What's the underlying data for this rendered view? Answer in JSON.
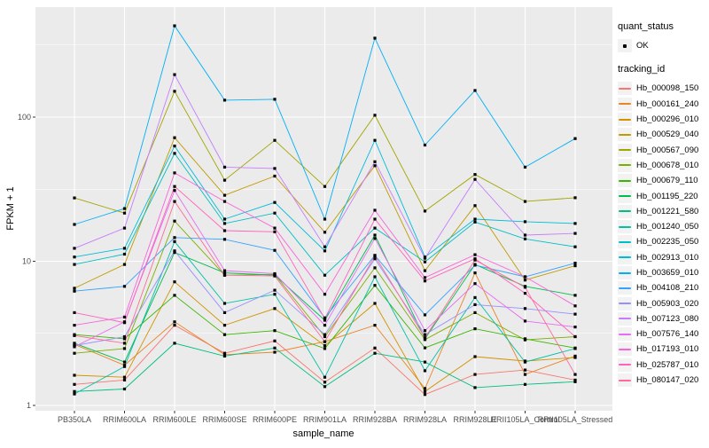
{
  "style_colors": {
    "panel_bg": "#EBEBEB",
    "grid": "#FFFFFF",
    "tick_label": "#4D4D4D",
    "axis_title": "#000000",
    "point": "#000000",
    "legend_key_bg": "#F2F2F2"
  },
  "chart_data": {
    "type": "line",
    "title": "",
    "xlabel": "sample_name",
    "ylabel": "FPKM + 1",
    "yscale": "log10",
    "yticks": [
      "1",
      "10",
      "100"
    ],
    "ytick_values": [
      1,
      10,
      100
    ],
    "yminor_values": [
      3.162,
      31.62,
      316.2
    ],
    "ylim": [
      0.93,
      600
    ],
    "grid": true,
    "legend_position": "right",
    "categories": [
      "PB350LA",
      "RRIM600LA",
      "RRIM600LE",
      "RRIM600SE",
      "RRIM600PE",
      "RRIM901LA",
      "RRIM928BA",
      "RRIM928LA",
      "RRIM928LE",
      "RRII105LA_Control",
      "RRII105LA_Stressed"
    ],
    "legend": {
      "quant_status_title": "quant_status",
      "quant_status_items": [
        "OK"
      ],
      "tracking_id_title": "tracking_id"
    },
    "series": [
      {
        "name": "Hb_000098_150",
        "color": "#F8766D",
        "values": [
          1.4,
          1.5,
          3.6,
          2.3,
          2.8,
          1.45,
          2.5,
          1.19,
          1.64,
          1.76,
          1.5
        ]
      },
      {
        "name": "Hb_000161_240",
        "color": "#E88526",
        "values": [
          2.65,
          1.9,
          3.8,
          2.25,
          2.34,
          2.77,
          3.6,
          1.31,
          8.3,
          1.64,
          2.2
        ]
      },
      {
        "name": "Hb_000296_010",
        "color": "#D39200",
        "values": [
          1.62,
          1.57,
          7.2,
          3.6,
          4.7,
          2.6,
          5.1,
          1.25,
          2.18,
          2.03,
          2.15
        ]
      },
      {
        "name": "Hb_000529_040",
        "color": "#C09B00",
        "values": [
          6.5,
          9.5,
          72,
          28.7,
          39,
          15.9,
          46,
          8.6,
          24.3,
          7.4,
          9.3
        ]
      },
      {
        "name": "Hb_000567_090",
        "color": "#A3A500",
        "values": [
          27.5,
          21.6,
          151,
          36.5,
          69,
          33,
          103,
          22.3,
          40,
          26,
          27.6
        ]
      },
      {
        "name": "Hb_000678_010",
        "color": "#7CAE00",
        "values": [
          2.3,
          2.48,
          19,
          8.0,
          8.1,
          3.0,
          9.0,
          2.86,
          4.4,
          2.85,
          3.0
        ]
      },
      {
        "name": "Hb_000679_110",
        "color": "#39B600",
        "values": [
          3.1,
          2.9,
          5.8,
          3.1,
          3.3,
          2.48,
          6.8,
          2.51,
          3.4,
          2.9,
          2.5
        ]
      },
      {
        "name": "Hb_001195_220",
        "color": "#00BB4E",
        "values": [
          2.7,
          2.0,
          11.5,
          8.3,
          8.0,
          3.9,
          15.2,
          2.9,
          9.5,
          6.7,
          5.8
        ]
      },
      {
        "name": "Hb_001221_580",
        "color": "#00BF7D",
        "values": [
          1.25,
          1.3,
          2.7,
          2.2,
          2.5,
          1.35,
          2.3,
          2.0,
          1.33,
          1.4,
          1.46
        ]
      },
      {
        "name": "Hb_001240_050",
        "color": "#00C1A7",
        "values": [
          1.2,
          1.86,
          13.7,
          5.1,
          5.9,
          1.57,
          7.8,
          1.74,
          5.6,
          2.0,
          2.48
        ]
      },
      {
        "name": "Hb_002235_050",
        "color": "#00BFC4",
        "values": [
          9.5,
          11.2,
          56,
          18.3,
          21.6,
          8.0,
          17.0,
          9.9,
          18.7,
          14.3,
          12.6
        ]
      },
      {
        "name": "Hb_002913_010",
        "color": "#00BBDA",
        "values": [
          10.7,
          12.3,
          63,
          19.6,
          25.6,
          11.8,
          69,
          10.7,
          19.6,
          18.8,
          18.3
        ]
      },
      {
        "name": "Hb_003659_010",
        "color": "#00B0F6",
        "values": [
          18,
          23.2,
          430,
          131,
          133,
          19.6,
          353,
          64,
          153,
          45,
          71
        ]
      },
      {
        "name": "Hb_004108_210",
        "color": "#35A2FF",
        "values": [
          6.2,
          6.7,
          14.6,
          14.2,
          11.9,
          4.05,
          11.0,
          4.25,
          9.4,
          7.8,
          9.7
        ]
      },
      {
        "name": "Hb_005903_020",
        "color": "#9590FF",
        "values": [
          2.6,
          3.0,
          11.8,
          4.4,
          6.3,
          3.1,
          10.4,
          3.1,
          5.0,
          4.7,
          4.3
        ]
      },
      {
        "name": "Hb_007123_080",
        "color": "#C77CFF",
        "values": [
          12.3,
          17,
          197,
          45,
          44,
          12.6,
          49,
          10.5,
          37,
          15.2,
          15.6
        ]
      },
      {
        "name": "Hb_007576_140",
        "color": "#E76BF3",
        "values": [
          2.55,
          3.8,
          31,
          8.6,
          8.2,
          3.6,
          14.4,
          3.3,
          7.0,
          3.85,
          3.5
        ]
      },
      {
        "name": "Hb_017193_010",
        "color": "#FA62DB",
        "values": [
          3.6,
          4.1,
          41,
          26,
          17,
          5.9,
          22.6,
          7.7,
          11.1,
          7.8,
          4.9
        ]
      },
      {
        "name": "Hb_025787_010",
        "color": "#FF62BC",
        "values": [
          4.4,
          3.75,
          33,
          16.3,
          16,
          4.0,
          19.6,
          7.3,
          10.4,
          6.0,
          3.0
        ]
      },
      {
        "name": "Hb_080147_020",
        "color": "#FF6A98",
        "values": [
          3.05,
          2.7,
          26,
          8.0,
          7.9,
          2.77,
          10.9,
          2.95,
          10.2,
          6.6,
          1.64
        ]
      }
    ]
  }
}
